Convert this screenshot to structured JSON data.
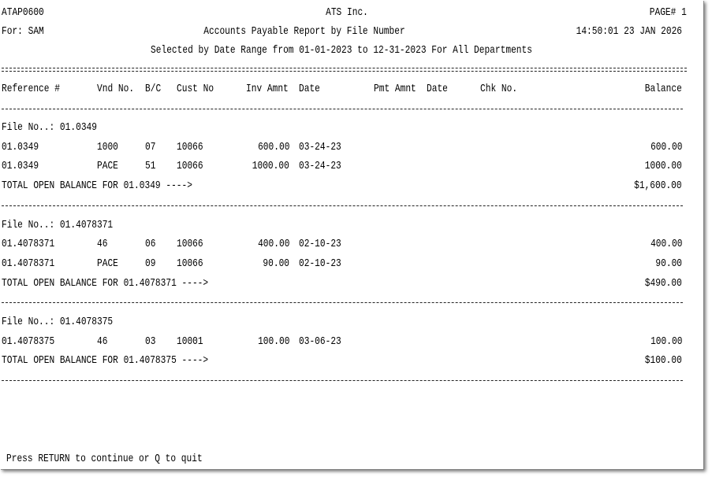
{
  "header": {
    "program_id": "ATAP0600",
    "company": "ATS Inc.",
    "page": "PAGE# 1",
    "user": "For: SAM",
    "report_title": "Accounts Payable Report by File Number",
    "timestamp": "14:50:01 23 JAN 2026",
    "selection": "Selected by Date Range from 01-01-2023 to 12-31-2023 For All Departments"
  },
  "columns": {
    "reference": "Reference #",
    "vendor": "Vnd No.",
    "bc": "B/C",
    "cust": "Cust No",
    "inv_amnt": "Inv Amnt",
    "inv_date": "Date",
    "pmt_amnt": "Pmt Amnt",
    "pmt_date": "Date",
    "chk": "Chk No.",
    "balance": "Balance"
  },
  "files": [
    {
      "label": "File No..: 01.0349",
      "rows": [
        {
          "ref": "01.0349",
          "vnd": "1000",
          "bc": "07",
          "cust": "10066",
          "inv": "600.00",
          "date": "03-24-23",
          "balance": "600.00"
        },
        {
          "ref": "01.0349",
          "vnd": "PACE",
          "bc": "51",
          "cust": "10066",
          "inv": "1000.00",
          "date": "03-24-23",
          "balance": "1000.00"
        }
      ],
      "total_label": "TOTAL OPEN BALANCE FOR 01.0349 ---->",
      "total": "$1,600.00"
    },
    {
      "label": "File No..: 01.4078371",
      "rows": [
        {
          "ref": "01.4078371",
          "vnd": "46",
          "bc": "06",
          "cust": "10066",
          "inv": "400.00",
          "date": "02-10-23",
          "balance": "400.00"
        },
        {
          "ref": "01.4078371",
          "vnd": "PACE",
          "bc": "09",
          "cust": "10066",
          "inv": "90.00",
          "date": "02-10-23",
          "balance": "90.00"
        }
      ],
      "total_label": "TOTAL OPEN BALANCE FOR 01.4078371 ---->",
      "total": "$490.00"
    },
    {
      "label": "File No..: 01.4078375",
      "rows": [
        {
          "ref": "01.4078375",
          "vnd": "46",
          "bc": "03",
          "cust": "10001",
          "inv": "100.00",
          "date": "03-06-23",
          "balance": "100.00"
        }
      ],
      "total_label": "TOTAL OPEN BALANCE FOR 01.4078375 ---->",
      "total": "$100.00"
    }
  ],
  "prompt": "Press RETURN to continue or Q to quit"
}
